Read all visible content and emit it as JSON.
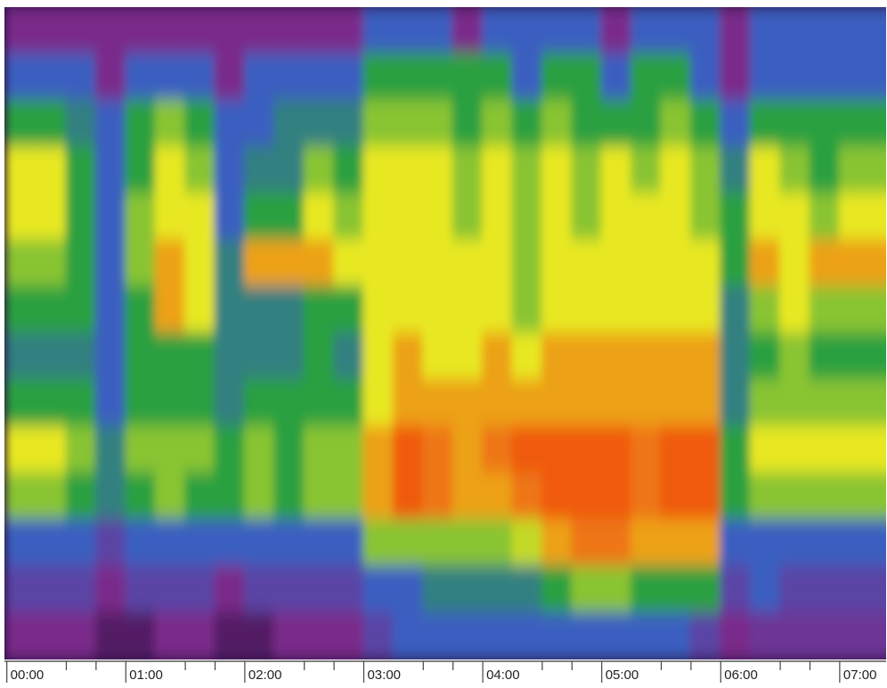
{
  "chart_data": {
    "type": "heatmap",
    "x": [
      0.125,
      0.375,
      0.625,
      0.875,
      1.125,
      1.375,
      1.625,
      1.875,
      2.125,
      2.375,
      2.625,
      2.875,
      3.125,
      3.375,
      3.625,
      3.875,
      4.125,
      4.375,
      4.625,
      4.875,
      5.125,
      5.375,
      5.625,
      5.875,
      6.125,
      6.375,
      6.625,
      6.875,
      7.125,
      7.375
    ],
    "y": [
      null,
      null,
      null,
      null,
      null,
      null,
      null,
      null,
      null,
      null,
      null,
      null,
      null,
      null
    ],
    "z": [
      [
        1,
        1,
        1,
        1,
        1,
        1,
        1,
        1,
        1,
        1,
        1,
        1,
        2,
        2,
        2,
        1,
        2,
        2,
        2,
        2,
        1,
        2,
        2,
        2,
        1,
        2,
        2,
        2,
        2,
        2
      ],
      [
        2,
        2,
        2,
        1,
        2,
        2,
        2,
        1,
        2,
        2,
        2,
        2,
        3,
        3,
        3,
        3,
        3,
        2,
        3,
        3,
        2,
        3,
        3,
        2,
        1,
        2,
        2,
        2,
        2,
        2
      ],
      [
        3,
        3,
        2.5,
        2,
        3,
        3.5,
        3,
        2,
        2,
        2.5,
        2.5,
        2.5,
        3.5,
        3.5,
        3.5,
        3,
        3.5,
        3,
        3.5,
        3,
        3,
        3,
        3.5,
        3,
        2,
        3,
        3,
        3,
        3,
        3
      ],
      [
        4,
        4,
        3,
        2,
        3,
        4,
        3.5,
        2,
        2.5,
        2.5,
        3.5,
        3,
        4,
        4,
        4,
        3.5,
        4,
        3.5,
        4,
        3.5,
        4,
        3.5,
        4,
        3.5,
        2.5,
        4,
        3.5,
        3,
        3.5,
        3.5
      ],
      [
        4,
        4,
        3,
        2,
        3.5,
        4,
        4,
        2,
        3,
        3,
        4,
        3.5,
        4,
        4,
        4,
        3.5,
        4,
        3.5,
        4,
        3.5,
        4,
        4,
        4,
        3.5,
        3,
        4,
        4,
        3.5,
        4,
        4
      ],
      [
        3.5,
        3.5,
        3,
        2,
        3.5,
        4.5,
        4,
        2.5,
        4.5,
        4.5,
        4.5,
        4,
        4,
        4,
        4,
        4,
        4,
        3.5,
        4,
        4,
        4,
        4,
        4,
        4,
        3,
        4.5,
        4,
        4.5,
        4.5,
        4.5
      ],
      [
        3,
        3,
        3,
        2,
        3,
        4.5,
        4,
        2.5,
        2.5,
        2.5,
        3,
        3,
        4,
        4,
        4,
        4,
        4,
        3.5,
        4,
        4,
        4,
        4,
        4,
        4,
        2.5,
        3.5,
        4,
        3.5,
        3.5,
        3.5
      ],
      [
        2.5,
        2.5,
        2.5,
        2,
        3,
        3,
        3,
        2.5,
        2.5,
        2.5,
        3,
        2.5,
        4,
        4.5,
        4,
        4,
        4.5,
        4,
        4.5,
        4.5,
        4.5,
        4.5,
        4.5,
        4.5,
        2.5,
        3,
        3.5,
        3,
        3,
        3
      ],
      [
        3,
        3,
        3,
        2,
        3,
        3,
        3,
        2.5,
        3,
        3,
        3,
        3,
        4,
        4.5,
        4.5,
        4.5,
        4.5,
        4.5,
        4.5,
        4.5,
        4.5,
        4.5,
        4.5,
        4.5,
        2.5,
        3.5,
        3.5,
        3.5,
        3.5,
        3.5
      ],
      [
        4,
        4,
        3.5,
        2.5,
        3.5,
        3.5,
        3.5,
        3,
        3.5,
        3,
        3.5,
        3.5,
        4.5,
        5,
        4.8,
        4.5,
        4.8,
        5,
        5,
        5,
        5,
        4.8,
        5,
        5,
        3,
        4,
        4,
        4,
        4,
        4
      ],
      [
        3.5,
        3.5,
        3,
        2.5,
        3,
        3.5,
        3,
        3,
        3.5,
        3,
        3.5,
        3.5,
        4.5,
        5,
        4.8,
        4.5,
        4.5,
        4.8,
        5,
        5,
        5,
        4.8,
        5,
        5,
        3,
        3.5,
        3.5,
        3.5,
        3.5,
        3.5
      ],
      [
        2,
        2,
        2,
        1.5,
        2,
        2,
        2,
        2,
        2,
        2,
        2,
        2,
        3.5,
        3.5,
        3.5,
        3.5,
        3.5,
        3.8,
        4.5,
        4.8,
        4.8,
        4.5,
        4.5,
        4.5,
        2,
        2,
        2,
        2,
        2,
        2
      ],
      [
        1.5,
        1.5,
        1.5,
        1,
        1.5,
        1.5,
        1.5,
        1,
        1.5,
        1.5,
        1.5,
        1.5,
        2,
        2,
        2.5,
        2.5,
        2.5,
        2.5,
        3,
        3.5,
        3.5,
        3,
        3,
        3,
        1.5,
        2,
        1.5,
        1.5,
        1.5,
        1.5
      ],
      [
        1,
        1,
        1,
        0.5,
        0.5,
        1,
        1,
        0.5,
        0.5,
        1,
        1,
        1,
        1.5,
        2,
        2,
        2,
        2,
        2,
        2,
        2,
        2,
        2,
        2,
        1.5,
        1,
        1.2,
        1.2,
        1.2,
        1.2,
        1.2
      ]
    ],
    "cell_width": 0.25,
    "zlim": [
      0,
      5
    ],
    "colors": [
      "#2a1040",
      "#7a2a8a",
      "#3a5fc0",
      "#2aa040",
      "#e8e820",
      "#f05a10"
    ],
    "xlim": [
      -0.02,
      7.39
    ],
    "xticks": [
      {
        "value": 0,
        "label": "00:00"
      },
      {
        "value": 1,
        "label": "01:00"
      },
      {
        "value": 2,
        "label": "02:00"
      },
      {
        "value": 3,
        "label": "03:00"
      },
      {
        "value": 4,
        "label": "04:00"
      },
      {
        "value": 5,
        "label": "05:00"
      },
      {
        "value": 6,
        "label": "06:00"
      },
      {
        "value": 7,
        "label": "07:00"
      }
    ],
    "minor_xticks": [
      0.5,
      0.75,
      1.5,
      1.75,
      2.5,
      2.75,
      3.5,
      3.75,
      4.5,
      4.75,
      5.5,
      5.75,
      6.5,
      6.75
    ]
  }
}
